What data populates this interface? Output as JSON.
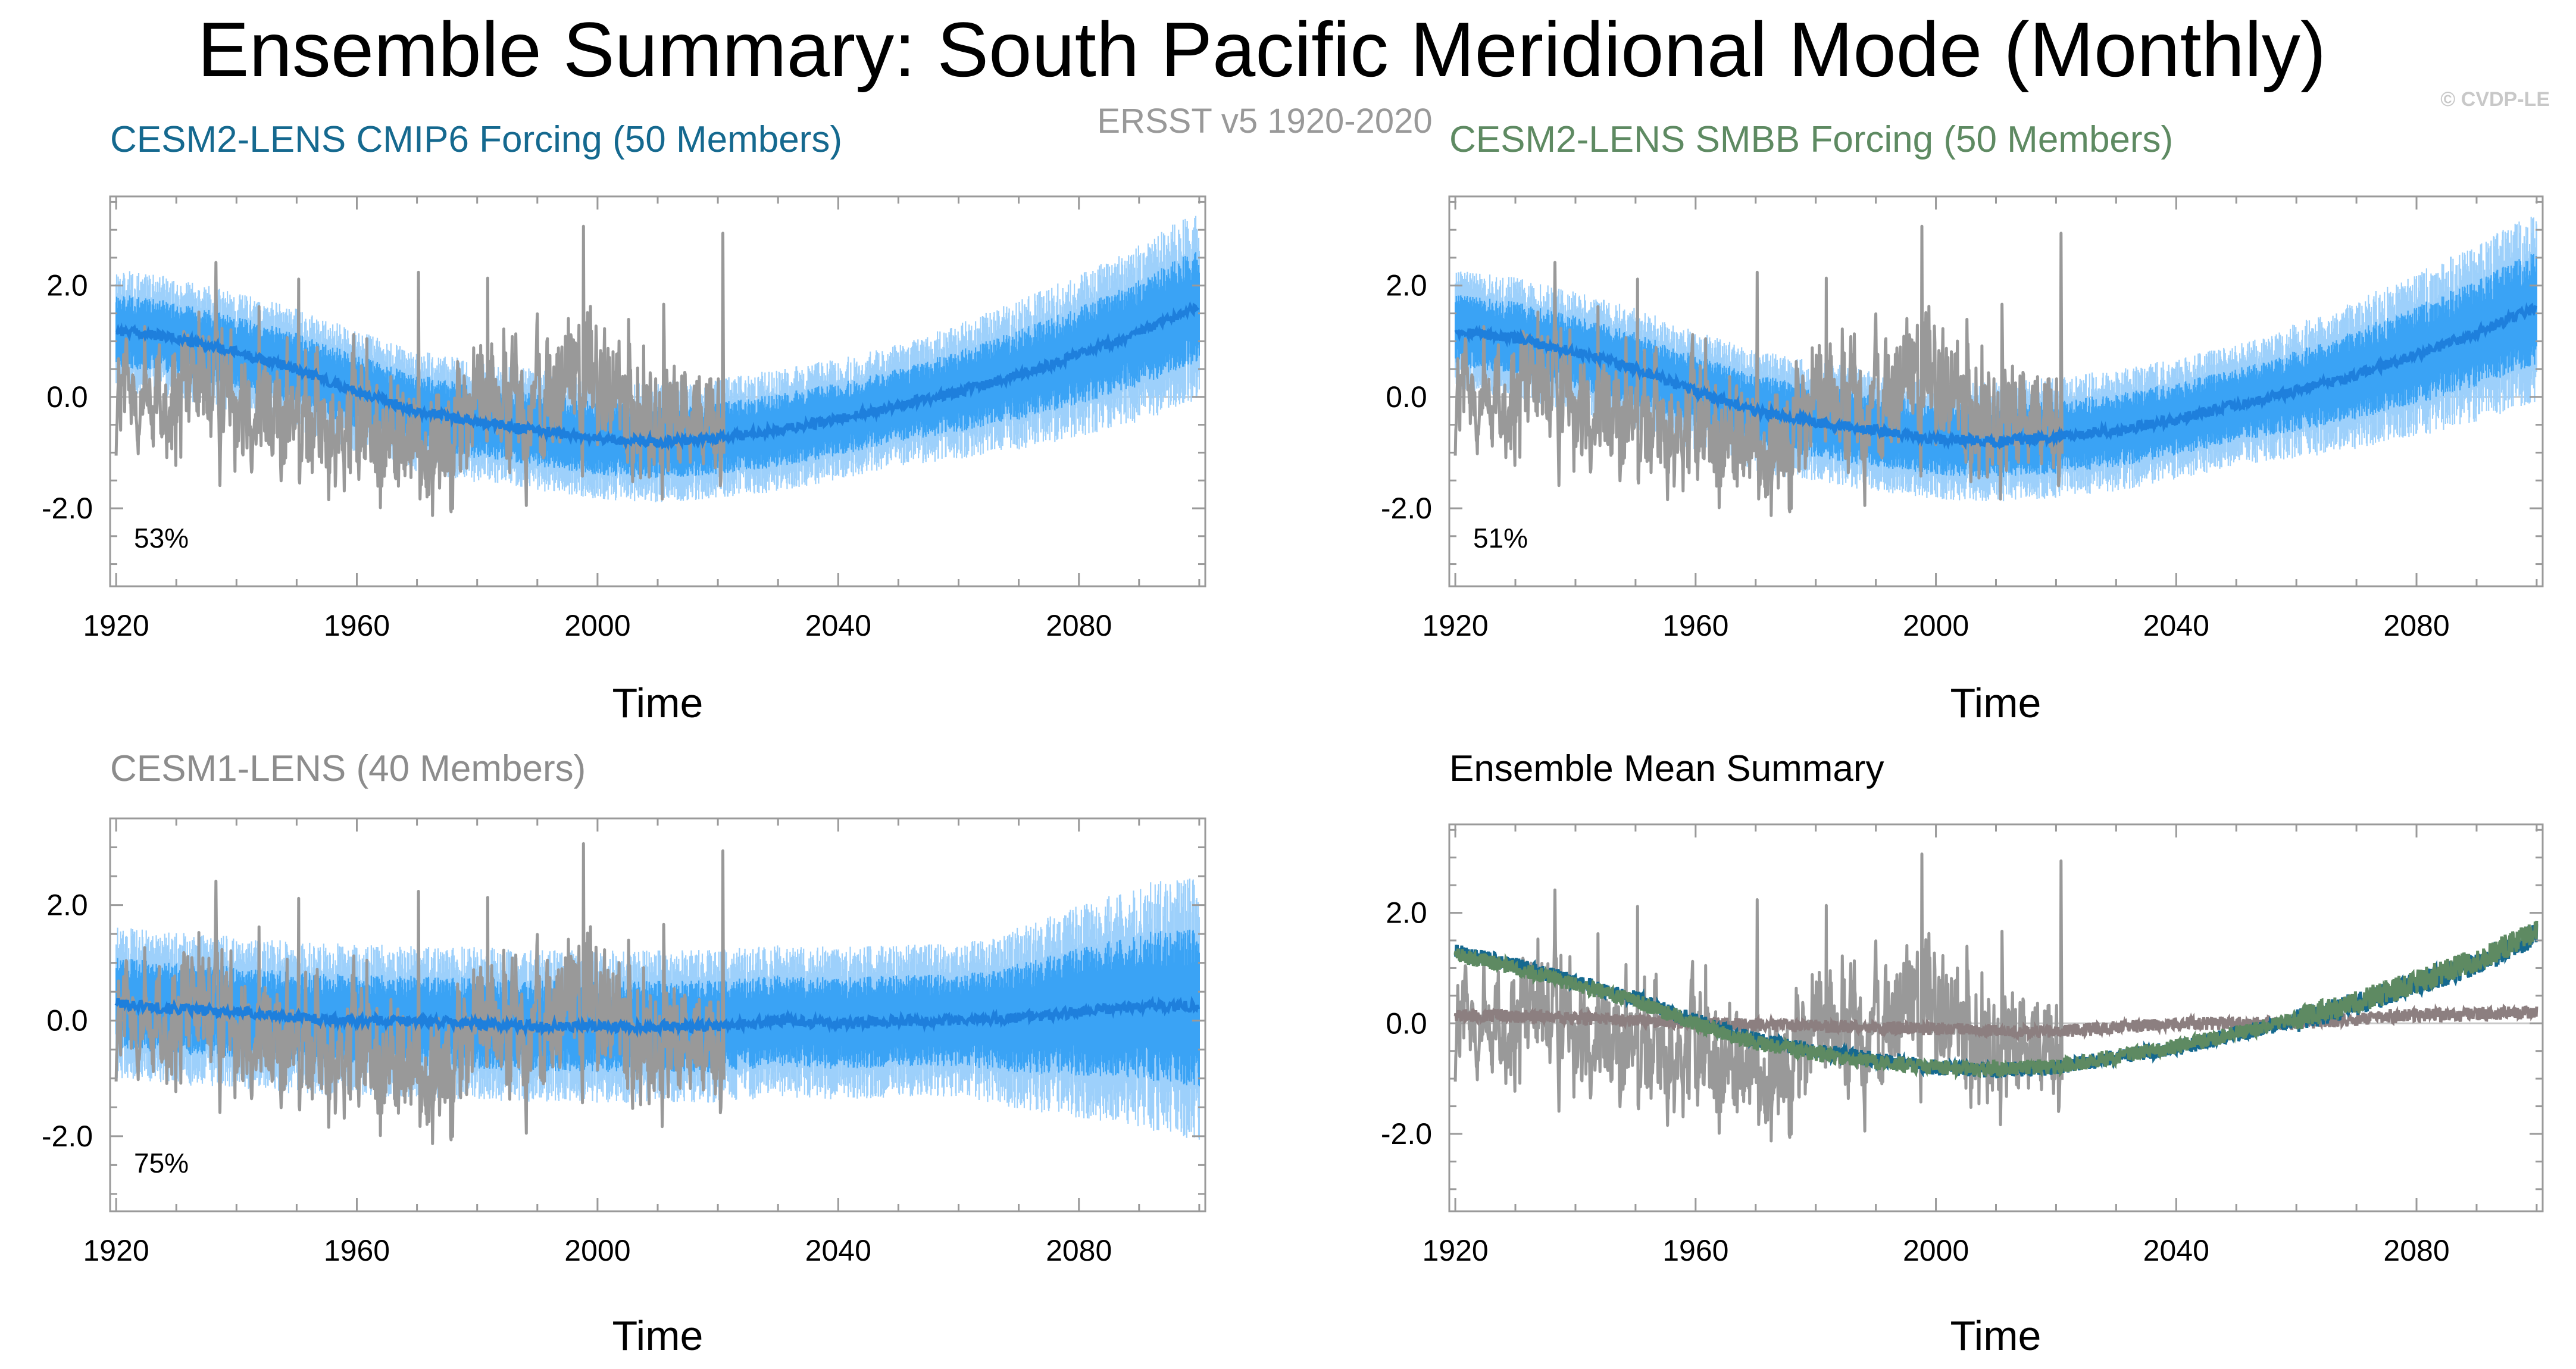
{
  "title": "Ensemble Summary: South Pacific Meridional Mode (Monthly)",
  "copyright": "© CVDP-LE",
  "observations_label": "ERSST v5 1920-2020",
  "colors": {
    "obs": "#999999",
    "spread_outer": "#9dd0fb",
    "spread_inner": "#3aa3f5",
    "ens_mean": "#1e7fdc",
    "cmip6_title": "#15698f",
    "smbb_title": "#5e8a62",
    "cesm1_title": "#8c8c8c",
    "cesm1_mean": "#8c7f80",
    "axis": "#9a9a9a"
  },
  "chart_data": [
    {
      "type": "line",
      "panel": "top-left",
      "title": "CESM2-LENS CMIP6 Forcing (50 Members)",
      "title_color": "#15698f",
      "xlabel": "Time",
      "ylabel": "",
      "xlim": [
        1919,
        2101
      ],
      "ylim": [
        -3.4,
        3.6
      ],
      "x_ticks": [
        1920,
        1960,
        2000,
        2040,
        2080
      ],
      "y_ticks": [
        -2.0,
        0.0,
        2.0
      ],
      "y_tick_labels": [
        "-2.0",
        "0.0",
        "2.0"
      ],
      "percent_label": "53%",
      "series": [
        {
          "name": "Ensemble mean",
          "kind": "ensemble",
          "x": [
            1920,
            1930,
            1940,
            1950,
            1960,
            1970,
            1980,
            1990,
            2000,
            2010,
            2020,
            2030,
            2040,
            2050,
            2060,
            2070,
            2080,
            2090,
            2100
          ],
          "values": [
            1.2,
            1.05,
            0.8,
            0.5,
            0.1,
            -0.25,
            -0.45,
            -0.6,
            -0.75,
            -0.8,
            -0.75,
            -0.6,
            -0.4,
            -0.15,
            0.1,
            0.4,
            0.75,
            1.15,
            1.65
          ]
        },
        {
          "name": "ERSST v5 1920-2020",
          "kind": "obs",
          "x_range": [
            1920,
            2020
          ]
        }
      ]
    },
    {
      "type": "line",
      "panel": "top-right",
      "title": "CESM2-LENS SMBB Forcing (50 Members)",
      "title_color": "#5e8a62",
      "xlabel": "Time",
      "ylabel": "",
      "xlim": [
        1919,
        2101
      ],
      "ylim": [
        -3.4,
        3.6
      ],
      "x_ticks": [
        1920,
        1960,
        2000,
        2040,
        2080
      ],
      "y_ticks": [
        -2.0,
        0.0,
        2.0
      ],
      "y_tick_labels": [
        "-2.0",
        "0.0",
        "2.0"
      ],
      "percent_label": "51%",
      "series": [
        {
          "name": "Ensemble mean",
          "kind": "ensemble",
          "x": [
            1920,
            1930,
            1940,
            1950,
            1960,
            1970,
            1980,
            1990,
            2000,
            2010,
            2020,
            2030,
            2040,
            2050,
            2060,
            2070,
            2080,
            2090,
            2100
          ],
          "values": [
            1.2,
            1.05,
            0.8,
            0.5,
            0.1,
            -0.25,
            -0.45,
            -0.6,
            -0.75,
            -0.8,
            -0.72,
            -0.6,
            -0.4,
            -0.15,
            0.1,
            0.4,
            0.75,
            1.15,
            1.6
          ]
        },
        {
          "name": "ERSST v5 1920-2020",
          "kind": "obs",
          "x_range": [
            1920,
            2020
          ]
        }
      ]
    },
    {
      "type": "line",
      "panel": "bottom-left",
      "title": "CESM1-LENS (40 Members)",
      "title_color": "#8c8c8c",
      "xlabel": "Time",
      "ylabel": "",
      "xlim": [
        1919,
        2101
      ],
      "ylim": [
        -3.3,
        3.5
      ],
      "x_ticks": [
        1920,
        1960,
        2000,
        2040,
        2080
      ],
      "y_ticks": [
        -2.0,
        0.0,
        2.0
      ],
      "y_tick_labels": [
        "-2.0",
        "0.0",
        "2.0"
      ],
      "percent_label": "75%",
      "series": [
        {
          "name": "Ensemble mean",
          "kind": "ensemble",
          "x": [
            1920,
            1930,
            1940,
            1950,
            1960,
            1970,
            1980,
            1990,
            2000,
            2010,
            2020,
            2030,
            2040,
            2050,
            2060,
            2070,
            2080,
            2090,
            2100
          ],
          "values": [
            0.3,
            0.2,
            0.15,
            0.05,
            0.0,
            0.0,
            -0.05,
            -0.1,
            -0.1,
            -0.1,
            -0.1,
            0.0,
            -0.05,
            0.0,
            0.0,
            0.05,
            0.15,
            0.25,
            0.25
          ]
        },
        {
          "name": "ERSST v5 1920-2020",
          "kind": "obs",
          "x_range": [
            1920,
            2020
          ]
        }
      ]
    },
    {
      "type": "line",
      "panel": "bottom-right",
      "title": "Ensemble Mean Summary",
      "title_color": "#000000",
      "xlabel": "Time",
      "ylabel": "",
      "xlim": [
        1919,
        2101
      ],
      "ylim": [
        -3.4,
        3.6
      ],
      "x_ticks": [
        1920,
        1960,
        2000,
        2040,
        2080
      ],
      "y_ticks": [
        -2.0,
        0.0,
        2.0
      ],
      "y_tick_labels": [
        "-2.0",
        "0.0",
        "2.0"
      ],
      "percent_label": "",
      "series": [
        {
          "name": "CESM1-LENS mean",
          "kind": "mean",
          "color": "#8c7f80",
          "x": [
            1920,
            1940,
            1960,
            1980,
            2000,
            2020,
            2040,
            2060,
            2080,
            2100
          ],
          "values": [
            0.15,
            0.1,
            0.0,
            -0.05,
            -0.1,
            -0.15,
            0.0,
            0.0,
            0.15,
            0.2
          ]
        },
        {
          "name": "CESM2-LENS CMIP6 mean",
          "kind": "mean",
          "color": "#15698f",
          "x": [
            1920,
            1930,
            1940,
            1950,
            1960,
            1970,
            1980,
            1990,
            2000,
            2010,
            2020,
            2030,
            2040,
            2050,
            2060,
            2070,
            2080,
            2090,
            2100
          ],
          "values": [
            1.3,
            1.05,
            0.75,
            0.45,
            0.05,
            -0.3,
            -0.5,
            -0.65,
            -0.8,
            -0.85,
            -0.8,
            -0.6,
            -0.45,
            -0.2,
            0.05,
            0.35,
            0.7,
            1.1,
            1.6
          ]
        },
        {
          "name": "CESM2-LENS SMBB mean",
          "kind": "mean",
          "color": "#5e8a62",
          "x": [
            1920,
            1930,
            1940,
            1950,
            1960,
            1970,
            1980,
            1990,
            2000,
            2010,
            2020,
            2030,
            2040,
            2050,
            2060,
            2070,
            2080,
            2090,
            2100
          ],
          "values": [
            1.25,
            1.0,
            0.7,
            0.4,
            0.0,
            -0.35,
            -0.55,
            -0.7,
            -0.8,
            -0.82,
            -0.78,
            -0.6,
            -0.42,
            -0.18,
            0.08,
            0.38,
            0.75,
            1.15,
            1.65
          ]
        },
        {
          "name": "ERSST v5 1920-2020",
          "kind": "obs",
          "x_range": [
            1920,
            2020
          ]
        }
      ]
    }
  ]
}
